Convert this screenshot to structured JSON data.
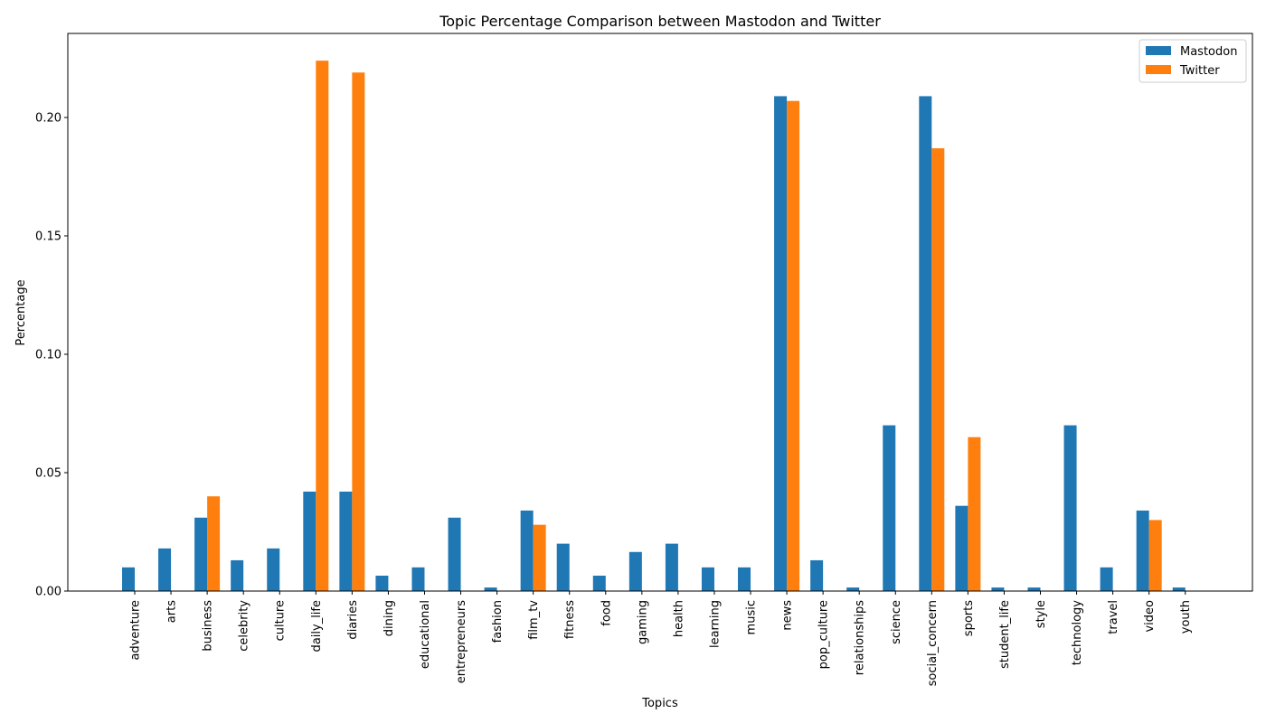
{
  "colors": {
    "mastodon": "#1f77b4",
    "twitter": "#ff7f0e"
  },
  "chart_data": {
    "type": "bar",
    "title": "Topic Percentage Comparison between Mastodon and Twitter",
    "xlabel": "Topics",
    "ylabel": "Percentage",
    "ylim": [
      0,
      0.2355
    ],
    "yticks": [
      "0.00",
      "0.05",
      "0.10",
      "0.15",
      "0.20"
    ],
    "grid": false,
    "legend_position": "top-right",
    "categories": [
      "adventure",
      "arts",
      "business",
      "celebrity",
      "culture",
      "daily_life",
      "diaries",
      "dining",
      "educational",
      "entrepreneurs",
      "fashion",
      "film_tv",
      "fitness",
      "food",
      "gaming",
      "health",
      "learning",
      "music",
      "news",
      "pop_culture",
      "relationships",
      "science",
      "social_concern",
      "sports",
      "student_life",
      "style",
      "technology",
      "travel",
      "video",
      "youth"
    ],
    "series": [
      {
        "name": "Mastodon",
        "values": [
          0.01,
          0.018,
          0.031,
          0.013,
          0.018,
          0.042,
          0.042,
          0.0065,
          0.01,
          0.031,
          0.0015,
          0.034,
          0.02,
          0.0065,
          0.0165,
          0.02,
          0.01,
          0.01,
          0.209,
          0.013,
          0.0015,
          0.07,
          0.209,
          0.036,
          0.0015,
          0.0015,
          0.07,
          0.01,
          0.034,
          0.0015
        ]
      },
      {
        "name": "Twitter",
        "values": [
          0,
          0,
          0.04,
          0,
          0,
          0.224,
          0.219,
          0,
          0,
          0,
          0,
          0.028,
          0,
          0,
          0,
          0,
          0,
          0,
          0.207,
          0,
          0,
          0,
          0.187,
          0.065,
          0,
          0,
          0,
          0,
          0.03,
          0
        ]
      }
    ]
  }
}
